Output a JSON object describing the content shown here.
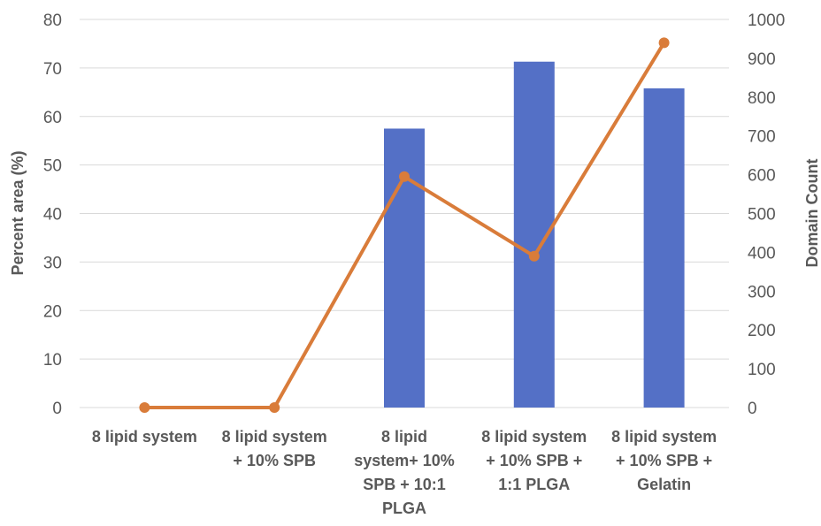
{
  "chart_data": {
    "type": "bar",
    "categories": [
      [
        "8 lipid system"
      ],
      [
        "8 lipid system",
        "+ 10% SPB"
      ],
      [
        "8 lipid",
        "system+ 10%",
        "SPB + 10:1",
        "PLGA"
      ],
      [
        "8 lipid system",
        "+ 10% SPB +",
        "1:1 PLGA"
      ],
      [
        "8 lipid system",
        "+ 10% SPB +",
        "Gelatin"
      ]
    ],
    "series": [
      {
        "type": "bar",
        "axis": "left",
        "color": "#5470c6",
        "values": [
          0,
          0,
          57.5,
          71.3,
          65.8
        ]
      },
      {
        "type": "line",
        "axis": "right",
        "color": "#d97c3a",
        "values": [
          0,
          0,
          595,
          390,
          940
        ]
      }
    ],
    "ylabel": "Percent area (%)",
    "y2label": "Domain Count",
    "ylim": [
      0,
      80
    ],
    "y2lim": [
      0,
      1000
    ],
    "yticks": [
      "0",
      "10",
      "20",
      "30",
      "40",
      "50",
      "60",
      "70",
      "80"
    ],
    "y2ticks": [
      "0",
      "100",
      "200",
      "300",
      "400",
      "500",
      "600",
      "700",
      "800",
      "900",
      "1000"
    ],
    "grid": true
  }
}
